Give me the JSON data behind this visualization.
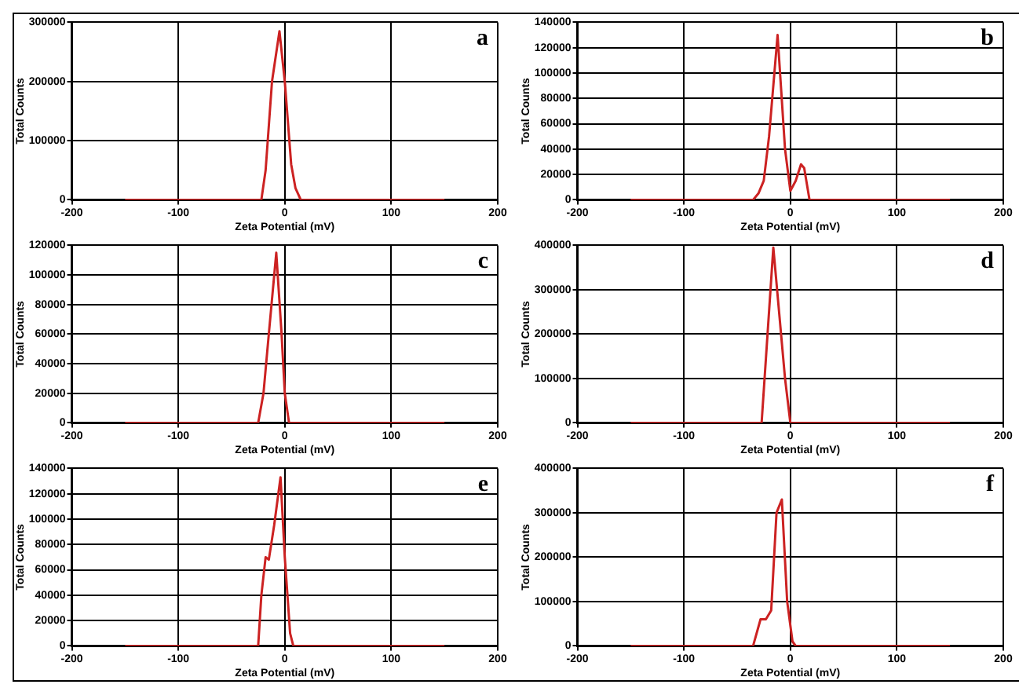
{
  "chart_data": [
    {
      "type": "line",
      "xlabel": "Zeta Potential (mV)",
      "ylabel": "Total Counts",
      "annotations": [
        "a"
      ],
      "grid": true,
      "xlim": [
        -200,
        200
      ],
      "xticks": [
        -200,
        -100,
        0,
        100,
        200
      ],
      "ylim": [
        0,
        300000
      ],
      "yticks": [
        0,
        100000,
        200000,
        300000
      ],
      "x": [
        -150,
        -22,
        -18,
        -12,
        -5,
        0,
        6,
        10,
        15,
        150
      ],
      "series": [
        {
          "color": "#cc2222",
          "values": [
            0,
            0,
            50000,
            200000,
            285000,
            200000,
            60000,
            20000,
            0,
            0
          ]
        }
      ]
    },
    {
      "type": "line",
      "xlabel": "Zeta Potential (mV)",
      "ylabel": "Total Counts",
      "annotations": [
        "b"
      ],
      "grid": true,
      "xlim": [
        -200,
        200
      ],
      "xticks": [
        -200,
        -100,
        0,
        100,
        200
      ],
      "ylim": [
        0,
        140000
      ],
      "yticks": [
        0,
        20000,
        40000,
        60000,
        80000,
        100000,
        120000,
        140000
      ],
      "x": [
        -150,
        -35,
        -30,
        -25,
        -20,
        -12,
        -5,
        0,
        5,
        10,
        13,
        18,
        150
      ],
      "series": [
        {
          "color": "#cc2222",
          "values": [
            0,
            0,
            5000,
            15000,
            50000,
            130000,
            40000,
            7000,
            15000,
            28000,
            25000,
            0,
            0
          ]
        }
      ]
    },
    {
      "type": "line",
      "xlabel": "Zeta Potential (mV)",
      "ylabel": "Total Counts",
      "annotations": [
        "c"
      ],
      "grid": true,
      "xlim": [
        -200,
        200
      ],
      "xticks": [
        -200,
        -100,
        0,
        100,
        200
      ],
      "ylim": [
        0,
        120000
      ],
      "yticks": [
        0,
        20000,
        40000,
        60000,
        80000,
        100000,
        120000
      ],
      "x": [
        -150,
        -25,
        -20,
        -15,
        -8,
        -3,
        0,
        4,
        150
      ],
      "series": [
        {
          "color": "#cc2222",
          "values": [
            0,
            0,
            20000,
            60000,
            115000,
            60000,
            20000,
            0,
            0
          ]
        }
      ]
    },
    {
      "type": "line",
      "xlabel": "Zeta Potential (mV)",
      "ylabel": "Total Counts",
      "annotations": [
        "d"
      ],
      "grid": true,
      "xlim": [
        -200,
        200
      ],
      "xticks": [
        -200,
        -100,
        0,
        100,
        200
      ],
      "ylim": [
        0,
        400000
      ],
      "yticks": [
        0,
        100000,
        200000,
        300000,
        400000
      ],
      "x": [
        -150,
        -27,
        -16,
        -5,
        0,
        150
      ],
      "series": [
        {
          "color": "#cc2222",
          "values": [
            0,
            0,
            395000,
            100000,
            0,
            0
          ]
        }
      ]
    },
    {
      "type": "line",
      "xlabel": "Zeta Potential (mV)",
      "ylabel": "Total Counts",
      "annotations": [
        "e"
      ],
      "grid": true,
      "xlim": [
        -200,
        200
      ],
      "xticks": [
        -200,
        -100,
        0,
        100,
        200
      ],
      "ylim": [
        0,
        140000
      ],
      "yticks": [
        0,
        20000,
        40000,
        60000,
        80000,
        100000,
        120000,
        140000
      ],
      "x": [
        -150,
        -25,
        -22,
        -18,
        -15,
        -10,
        -4,
        0,
        5,
        8,
        150
      ],
      "series": [
        {
          "color": "#cc2222",
          "values": [
            0,
            0,
            40000,
            70000,
            68000,
            95000,
            133000,
            70000,
            10000,
            0,
            0
          ]
        }
      ]
    },
    {
      "type": "line",
      "xlabel": "Zeta Potential (mV)",
      "ylabel": "Total Counts",
      "annotations": [
        "f"
      ],
      "grid": true,
      "xlim": [
        -200,
        200
      ],
      "xticks": [
        -200,
        -100,
        0,
        100,
        200
      ],
      "ylim": [
        0,
        400000
      ],
      "yticks": [
        0,
        100000,
        200000,
        300000,
        400000
      ],
      "x": [
        -150,
        -35,
        -28,
        -23,
        -18,
        -13,
        -8,
        -3,
        2,
        5,
        150
      ],
      "series": [
        {
          "color": "#cc2222",
          "values": [
            0,
            0,
            60000,
            60000,
            80000,
            300000,
            330000,
            100000,
            10000,
            0,
            0
          ]
        }
      ]
    }
  ]
}
